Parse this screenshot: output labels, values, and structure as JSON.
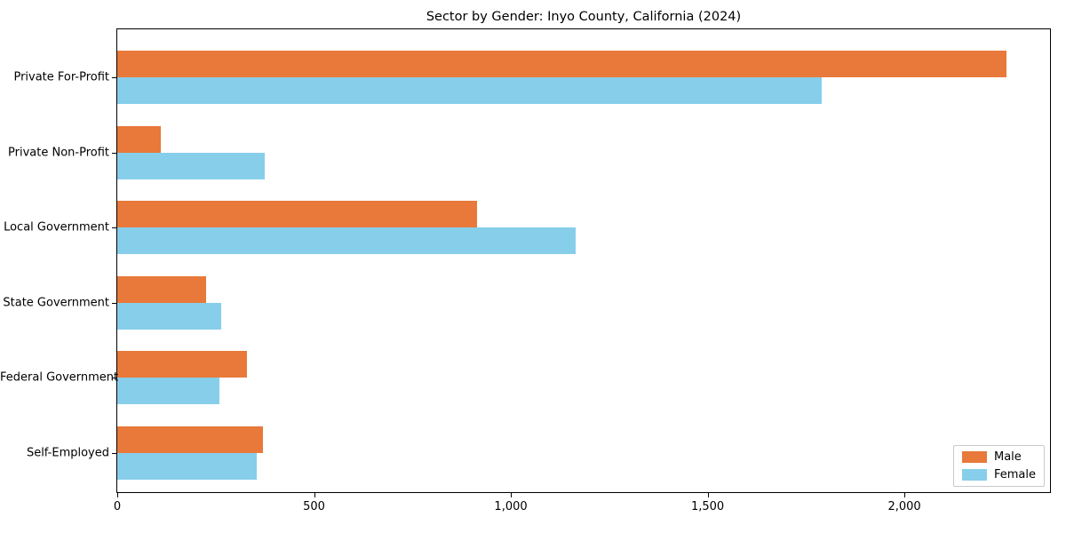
{
  "chart_data": {
    "type": "bar",
    "orientation": "horizontal",
    "title": "Sector by Gender: Inyo County, California (2024)",
    "categories": [
      "Private For-Profit",
      "Private Non-Profit",
      "Local Government",
      "State Government",
      "Federal Government",
      "Self-Employed"
    ],
    "series": [
      {
        "name": "Male",
        "color": "#e8793a",
        "values": [
          2260,
          110,
          915,
          225,
          330,
          370
        ]
      },
      {
        "name": "Female",
        "color": "#87ceeb",
        "values": [
          1790,
          375,
          1165,
          265,
          260,
          355
        ]
      }
    ],
    "xlim": [
      0,
      2370
    ],
    "xticks": [
      0,
      500,
      1000,
      1500,
      2000
    ],
    "xtick_labels": [
      "0",
      "500",
      "1,000",
      "1,500",
      "2,000"
    ],
    "grid": false,
    "legend_position": "lower right",
    "legend_entries": [
      "Male",
      "Female"
    ]
  }
}
